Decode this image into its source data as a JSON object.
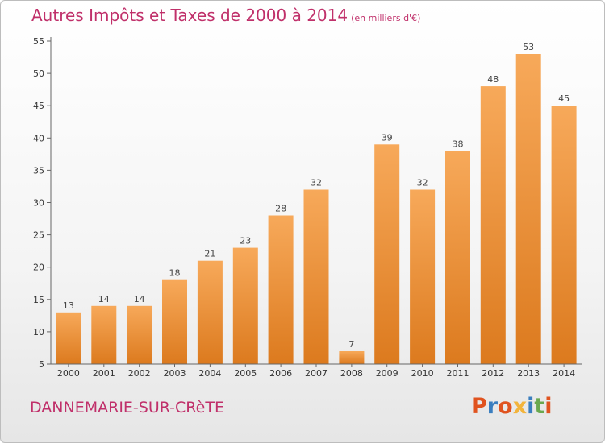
{
  "header": {
    "title": "Autres Impôts et Taxes de 2000 à 2014",
    "subtitle": "(en milliers d'€)"
  },
  "footer": {
    "commune": "DANNEMARIE-SUR-CRèTE",
    "brand": "Proxiti"
  },
  "colors": {
    "accent": "#c0306a",
    "bar_top": "#f7a95a",
    "bar_bottom": "#dc7a1e",
    "brand_letters": [
      "#e0531f",
      "#3a7ebf",
      "#e0531f",
      "#f2b43c",
      "#3a7ebf",
      "#6aa84f",
      "#e0531f"
    ]
  },
  "chart_data": {
    "type": "bar",
    "title": "Autres Impôts et Taxes de 2000 à 2014",
    "subtitle": "(en milliers d'€)",
    "xlabel": "",
    "ylabel": "",
    "categories": [
      "2000",
      "2001",
      "2002",
      "2003",
      "2004",
      "2005",
      "2006",
      "2007",
      "2008",
      "2009",
      "2010",
      "2011",
      "2012",
      "2013",
      "2014"
    ],
    "values": [
      13,
      14,
      14,
      18,
      21,
      23,
      28,
      32,
      7,
      39,
      32,
      38,
      48,
      53,
      45
    ],
    "ylim": [
      5,
      55
    ],
    "yticks": [
      5,
      10,
      15,
      20,
      25,
      30,
      35,
      40,
      45,
      50,
      55
    ],
    "grid": false,
    "legend": "none"
  }
}
